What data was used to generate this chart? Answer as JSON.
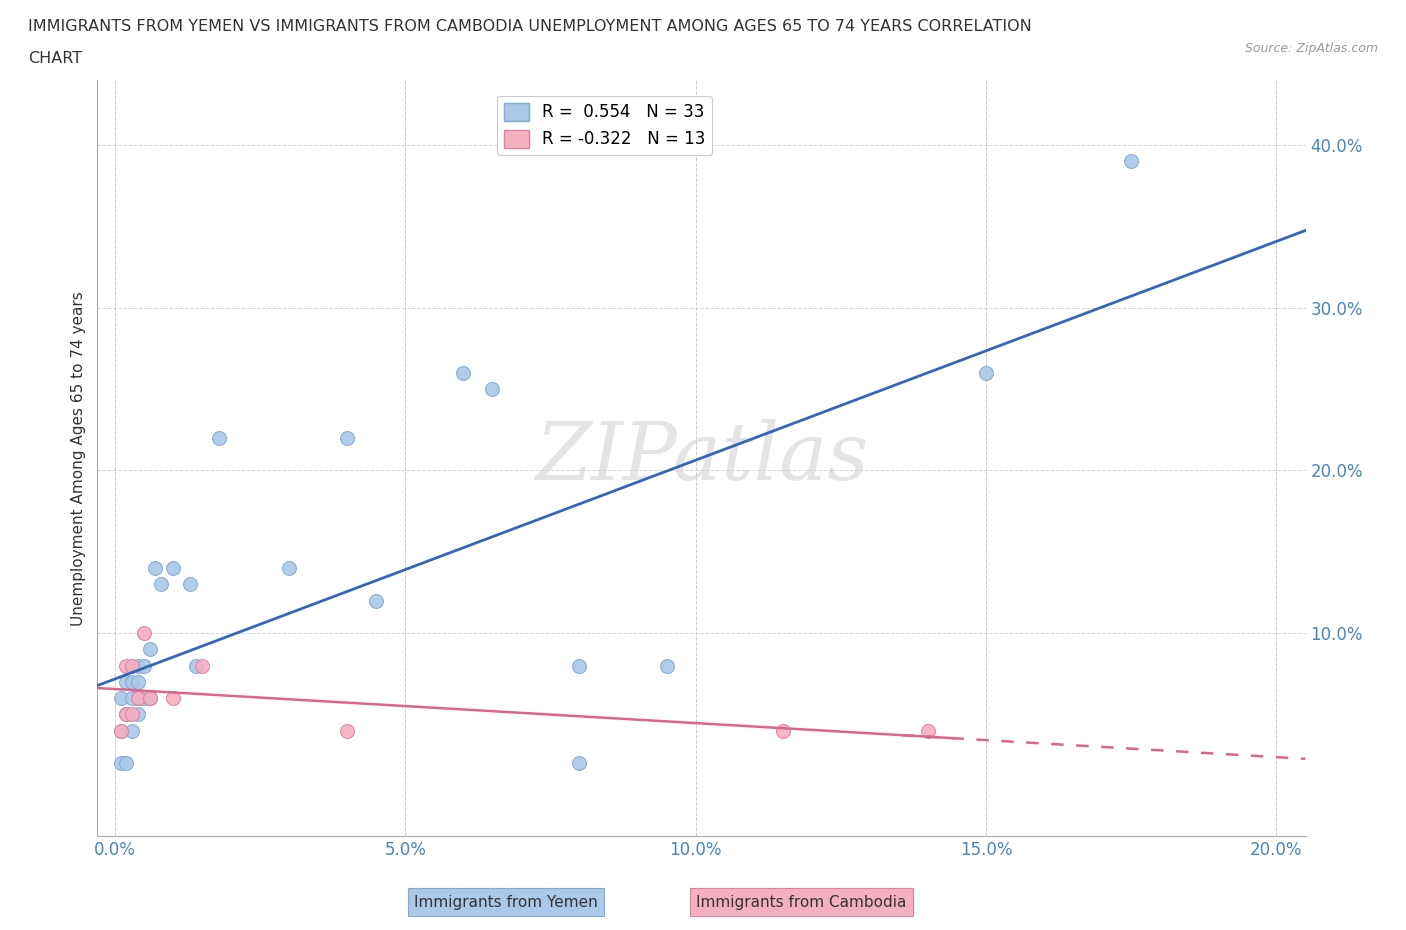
{
  "title_line1": "IMMIGRANTS FROM YEMEN VS IMMIGRANTS FROM CAMBODIA UNEMPLOYMENT AMONG AGES 65 TO 74 YEARS CORRELATION",
  "title_line2": "CHART",
  "source": "Source: ZipAtlas.com",
  "ylabel": "Unemployment Among Ages 65 to 74 years",
  "xlim": [
    -0.003,
    0.205
  ],
  "ylim": [
    -0.025,
    0.44
  ],
  "xtick_labels": [
    "0.0%",
    "",
    "5.0%",
    "",
    "10.0%",
    "",
    "15.0%",
    "",
    "20.0%"
  ],
  "xtick_vals": [
    0.0,
    0.025,
    0.05,
    0.075,
    0.1,
    0.125,
    0.15,
    0.175,
    0.2
  ],
  "ytick_labels": [
    "10.0%",
    "20.0%",
    "30.0%",
    "40.0%"
  ],
  "ytick_vals": [
    0.1,
    0.2,
    0.3,
    0.4
  ],
  "yemen_color": "#aac8e8",
  "cambodia_color": "#f4b0c0",
  "yemen_edge_color": "#80aad0",
  "cambodia_edge_color": "#e080a0",
  "trend_yemen_color": "#3366bb",
  "trend_cambodia_color": "#dd6688",
  "legend_R_yemen": "R =  0.554",
  "legend_N_yemen": "N = 33",
  "legend_R_cambodia": "R = -0.322",
  "legend_N_cambodia": "N = 13",
  "watermark": "ZIPatlas",
  "yemen_x": [
    0.001,
    0.001,
    0.001,
    0.002,
    0.002,
    0.002,
    0.003,
    0.003,
    0.003,
    0.004,
    0.004,
    0.004,
    0.004,
    0.005,
    0.005,
    0.006,
    0.006,
    0.007,
    0.008,
    0.01,
    0.013,
    0.014,
    0.018,
    0.03,
    0.04,
    0.045,
    0.06,
    0.065,
    0.08,
    0.08,
    0.095,
    0.15,
    0.175
  ],
  "yemen_y": [
    0.02,
    0.04,
    0.06,
    0.02,
    0.05,
    0.07,
    0.04,
    0.06,
    0.07,
    0.05,
    0.06,
    0.07,
    0.08,
    0.06,
    0.08,
    0.06,
    0.09,
    0.14,
    0.13,
    0.14,
    0.13,
    0.08,
    0.22,
    0.14,
    0.22,
    0.12,
    0.26,
    0.25,
    0.08,
    0.02,
    0.08,
    0.26,
    0.39
  ],
  "cambodia_x": [
    0.001,
    0.002,
    0.002,
    0.003,
    0.003,
    0.004,
    0.005,
    0.006,
    0.01,
    0.015,
    0.04,
    0.115,
    0.14
  ],
  "cambodia_y": [
    0.04,
    0.05,
    0.08,
    0.05,
    0.08,
    0.06,
    0.1,
    0.06,
    0.06,
    0.08,
    0.04,
    0.04,
    0.04
  ],
  "marker_size": 100
}
